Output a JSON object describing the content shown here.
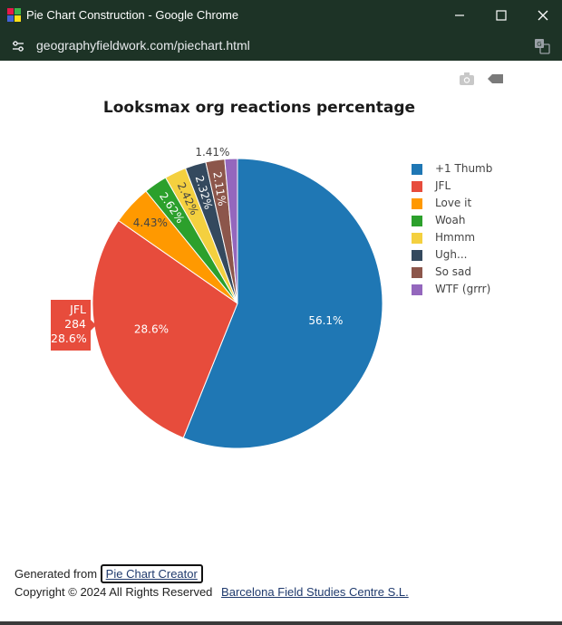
{
  "window": {
    "title": "Pie Chart Construction - Google Chrome",
    "url": "geographyfieldwork.com/piechart.html",
    "titlebar_color": "#1d3326"
  },
  "toolbar": {
    "camera_icon": "camera-icon",
    "tag_icon": "tag-icon"
  },
  "chart_data": {
    "type": "pie",
    "title": "Looksmax org reactions percentage",
    "slices": [
      {
        "label": "+1 Thumb",
        "percent": 56.1,
        "percent_text": "56.1%",
        "color": "#1f77b4"
      },
      {
        "label": "JFL",
        "percent": 28.6,
        "percent_text": "28.6%",
        "color": "#e74c3c"
      },
      {
        "label": "Love it",
        "percent": 4.43,
        "percent_text": "4.43%",
        "color": "#ff9900"
      },
      {
        "label": "Woah",
        "percent": 2.62,
        "percent_text": "2.62%",
        "color": "#2ca02c"
      },
      {
        "label": "Hmmm",
        "percent": 2.42,
        "percent_text": "2.42%",
        "color": "#f4d03f"
      },
      {
        "label": "Ugh...",
        "percent": 2.32,
        "percent_text": "2.32%",
        "color": "#34495e"
      },
      {
        "label": "So sad",
        "percent": 2.11,
        "percent_text": "2.11%",
        "color": "#8c564b"
      },
      {
        "label": "WTF (grrr)",
        "percent": 1.41,
        "percent_text": "1.41%",
        "color": "#9467bd"
      }
    ],
    "legend_position": "right",
    "hover": {
      "label": "JFL",
      "count": "284",
      "percent_text": "28.6%"
    }
  },
  "footer": {
    "generated_prefix": "Generated from",
    "creator_link": "Pie Chart Creator",
    "copyright": "Copyright © 2024 All Rights Reserved",
    "fsc_link": "Barcelona Field Studies Centre S.L."
  }
}
